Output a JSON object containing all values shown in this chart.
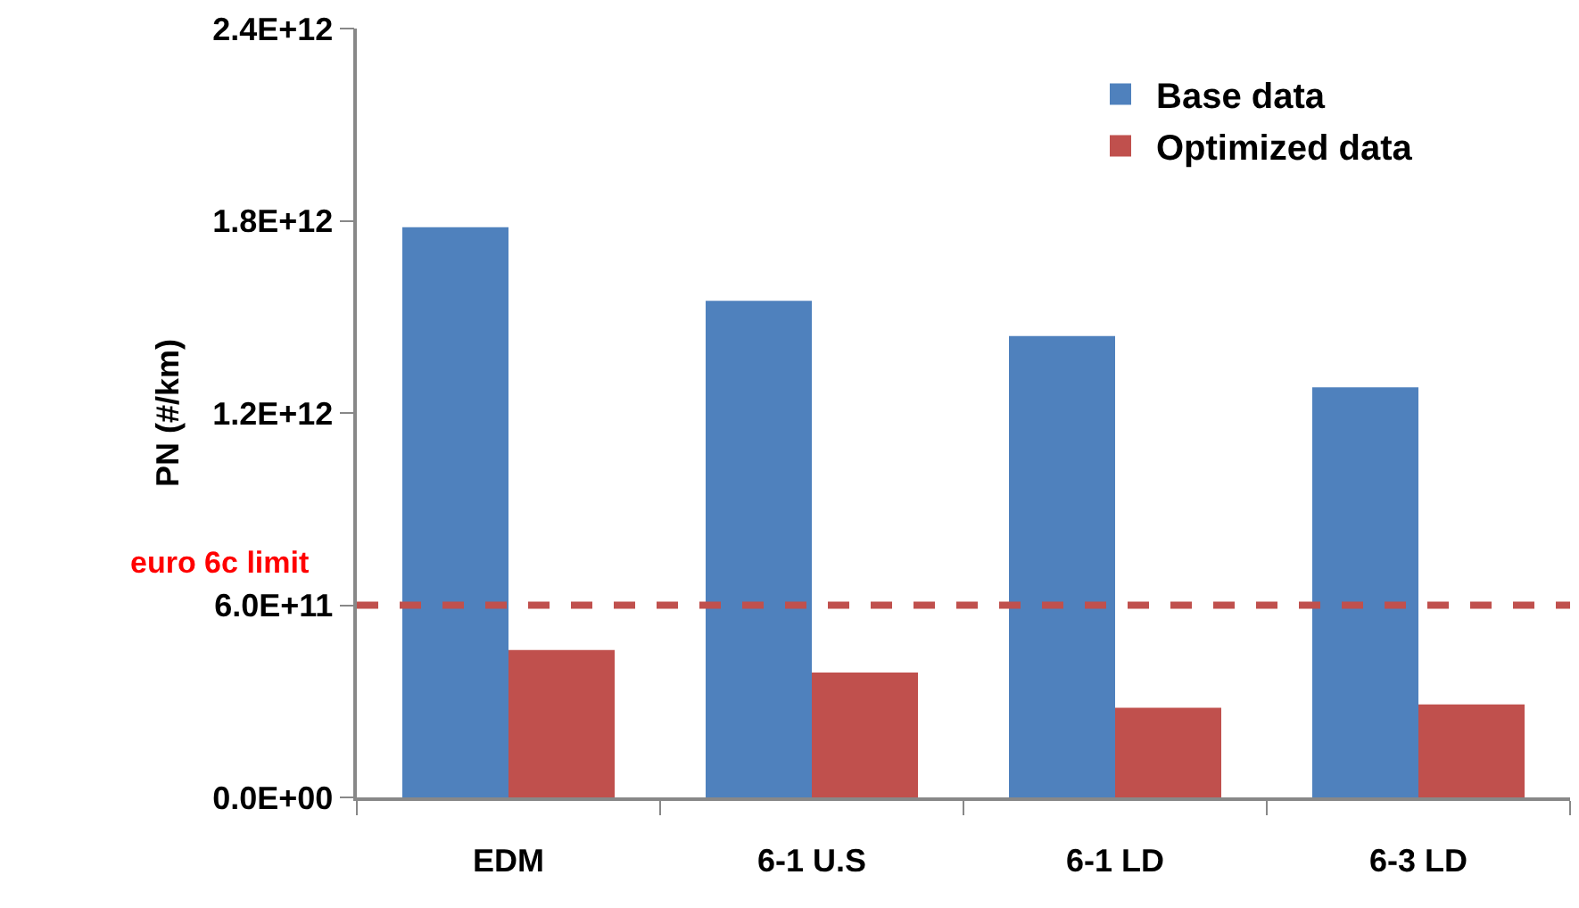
{
  "chart_data": {
    "type": "bar",
    "ylabel": "PN (#/km)",
    "categories": [
      "EDM",
      "6-1 U.S",
      "6-1 LD",
      "6-3 LD"
    ],
    "series": [
      {
        "name": "Base data",
        "color": "#4f81bd",
        "values": [
          1780000000000.0,
          1550000000000.0,
          1440000000000.0,
          1280000000000.0
        ]
      },
      {
        "name": "Optimized data",
        "color": "#c0504d",
        "values": [
          460000000000.0,
          390000000000.0,
          280000000000.0,
          290000000000.0
        ]
      }
    ],
    "ylim": [
      0,
      2400000000000.0
    ],
    "yticks": [
      {
        "value": 0,
        "label": "0.0E+00"
      },
      {
        "value": 600000000000.0,
        "label": "6.0E+11"
      },
      {
        "value": 1200000000000.0,
        "label": "1.2E+12"
      },
      {
        "value": 1800000000000.0,
        "label": "1.8E+12"
      },
      {
        "value": 2400000000000.0,
        "label": "2.4E+12"
      }
    ],
    "ref_lines": [
      {
        "axis": "y",
        "value": 600000000000.0,
        "label": "euro 6c limit",
        "color": "#c0504d",
        "line_style": "dashed"
      }
    ],
    "grid": false,
    "legend": "top right"
  }
}
